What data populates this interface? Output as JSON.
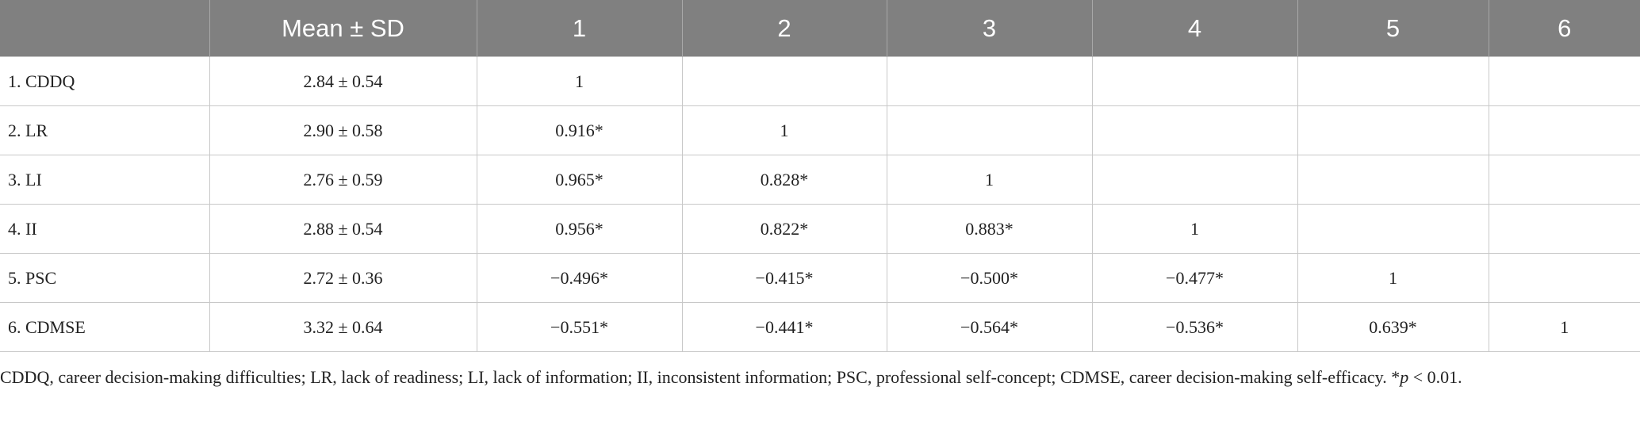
{
  "table": {
    "header": [
      "",
      "Mean ± SD",
      "1",
      "2",
      "3",
      "4",
      "5",
      "6"
    ],
    "rows": [
      [
        "1. CDDQ",
        "2.84 ± 0.54",
        "1"
      ],
      [
        "2. LR",
        "2.90 ± 0.58",
        "0.916*",
        "1"
      ],
      [
        "3. LI",
        "2.76 ± 0.59",
        "0.965*",
        "0.828*",
        "1"
      ],
      [
        "4. II",
        "2.88 ± 0.54",
        "0.956*",
        "0.822*",
        "0.883*",
        "1"
      ],
      [
        "5. PSC",
        "2.72 ± 0.36",
        "−0.496*",
        "−0.415*",
        "−0.500*",
        "−0.477*",
        "1"
      ],
      [
        "6. CDMSE",
        "3.32 ± 0.64",
        "−0.551*",
        "−0.441*",
        "−0.564*",
        "−0.536*",
        "0.639*",
        "1"
      ]
    ]
  },
  "footnote": {
    "text": "CDDQ, career decision-making difficulties; LR, lack of readiness; LI, lack of information; II, inconsistent information; PSC, professional self-concept; CDMSE, career decision-making self-efficacy. *",
    "italic": "p",
    "after": " < 0.01."
  }
}
